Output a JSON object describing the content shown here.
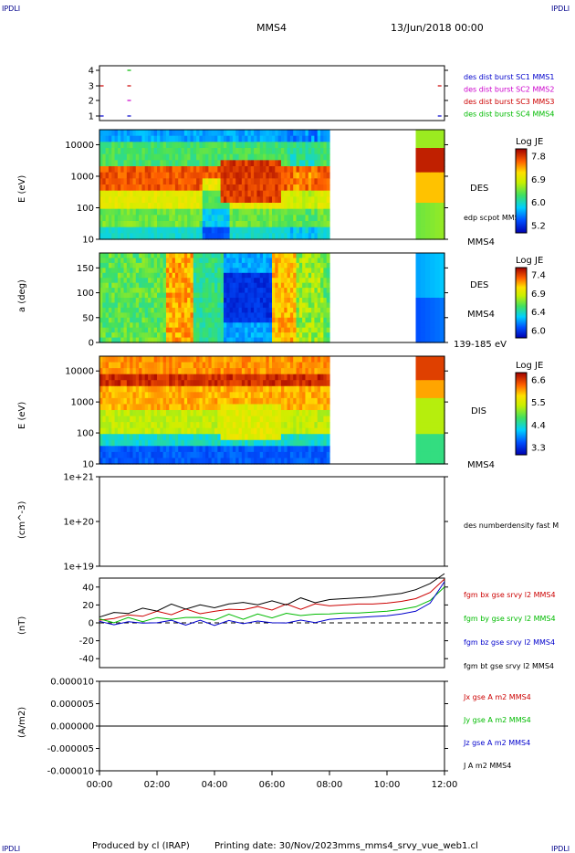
{
  "header": {
    "corner_label": "IPDLI",
    "spacecraft": "MMS4",
    "date": "13/Jun/2018 00:00"
  },
  "footer": {
    "produced_by": "Produced by cl (IRAP)",
    "printing_date": "Printing date: 30/Nov/2023",
    "file": "mms_mms4_srvy_vue_web1.cl"
  },
  "colors": {
    "blue": "#0000cc",
    "magenta": "#cc00cc",
    "red": "#cc0000",
    "green": "#00bb00",
    "black": "#000000"
  },
  "chart_data": [
    {
      "type": "scatter",
      "panel": "burst-availability",
      "yticks": [
        "1",
        "2",
        "3",
        "4"
      ],
      "ylim": [
        0.5,
        4.5
      ],
      "legend": [
        {
          "label": "des dist burst SC1 MMS1",
          "color": "#0000cc"
        },
        {
          "label": "des dist burst SC2 MMS2",
          "color": "#cc00cc"
        },
        {
          "label": "des dist burst SC3 MMS3",
          "color": "#cc0000"
        },
        {
          "label": "des dist burst SC4 MMS4",
          "color": "#00bb00"
        }
      ],
      "marks": [
        {
          "t": 0.05,
          "sc": 1
        },
        {
          "t": 1.0,
          "sc": 1
        },
        {
          "t": 0.05,
          "sc": 3
        },
        {
          "t": 1.0,
          "sc": 3
        },
        {
          "t": 1.0,
          "sc": 2
        },
        {
          "t": 1.0,
          "sc": 4
        },
        {
          "t": 11.8,
          "sc": 3
        },
        {
          "t": 11.8,
          "sc": 1
        }
      ]
    },
    {
      "type": "heatmap",
      "panel": "des-energy",
      "ylabel": "E (eV)",
      "yscale": "log",
      "ylim": [
        10,
        30000
      ],
      "yticks": [
        "10",
        "100",
        "1000",
        "10000"
      ],
      "species": "DES",
      "overlay_label": "edp scpot MMS4",
      "sc_label": "MMS4",
      "colorbar": {
        "title": "Log JE",
        "ticks": [
          "7.8",
          "6.9",
          "6.0",
          "5.2"
        ]
      },
      "data_gap": [
        8.0,
        11.0
      ]
    },
    {
      "type": "heatmap",
      "panel": "des-pitch",
      "ylabel": "a (deg)",
      "ylim": [
        0,
        180
      ],
      "yticks": [
        "0",
        "50",
        "100",
        "150"
      ],
      "species": "DES",
      "sc_label": "MMS4",
      "energy_band": "139-185 eV",
      "colorbar": {
        "title": "Log JE",
        "ticks": [
          "7.4",
          "6.9",
          "6.4",
          "6.0"
        ]
      },
      "data_gap": [
        8.0,
        11.0
      ]
    },
    {
      "type": "heatmap",
      "panel": "dis-energy",
      "ylabel": "E (eV)",
      "yscale": "log",
      "ylim": [
        10,
        30000
      ],
      "yticks": [
        "10",
        "100",
        "1000",
        "10000"
      ],
      "species": "DIS",
      "sc_label": "MMS4",
      "colorbar": {
        "title": "Log JE",
        "ticks": [
          "6.6",
          "5.5",
          "4.4",
          "3.3"
        ]
      },
      "data_gap": [
        8.0,
        11.0
      ]
    },
    {
      "type": "line",
      "panel": "density",
      "ylabel": "(cm^-3)",
      "yscale": "log",
      "yticks": [
        "1e+19",
        "1e+20",
        "1e+21"
      ],
      "legend": [
        {
          "label": "des numberdensity fast M",
          "color": "#000000"
        }
      ],
      "series": []
    },
    {
      "type": "line",
      "panel": "magnetic-field",
      "ylabel": "(nT)",
      "ylim": [
        -50,
        50
      ],
      "yticks": [
        "40",
        "20",
        "0",
        "-20",
        "-40"
      ],
      "legend": [
        {
          "label": "fgm bx gse srvy l2 MMS4",
          "color": "#cc0000"
        },
        {
          "label": "fgm by gse srvy l2 MMS4",
          "color": "#00bb00"
        },
        {
          "label": "fgm bz gse srvy l2 MMS4",
          "color": "#0000cc"
        },
        {
          "label": "fgm bt gse srvy l2 MMS4",
          "color": "#000000"
        }
      ],
      "x": [
        0,
        0.5,
        1,
        1.5,
        2,
        2.5,
        3,
        3.5,
        4,
        4.5,
        5,
        5.5,
        6,
        6.5,
        7,
        7.5,
        8,
        8.5,
        9,
        9.5,
        10,
        10.5,
        11,
        11.5,
        12
      ],
      "series": [
        {
          "color": "#cc0000",
          "values": [
            3,
            6,
            7,
            10,
            10,
            12,
            13,
            12,
            12,
            15,
            16,
            16,
            17,
            18,
            18,
            19,
            19,
            20,
            21,
            21,
            22,
            24,
            27,
            34,
            49
          ]
        },
        {
          "color": "#00bb00",
          "values": [
            2,
            3,
            3,
            4,
            4,
            5,
            6,
            5,
            5,
            7,
            7,
            7,
            8,
            9,
            9,
            10,
            10,
            11,
            11,
            12,
            13,
            15,
            18,
            25,
            40
          ]
        },
        {
          "color": "#0000cc",
          "values": [
            -1,
            0,
            0,
            0,
            1,
            1,
            0,
            0,
            0,
            0,
            1,
            1,
            0,
            1,
            1,
            3,
            4,
            5,
            6,
            7,
            8,
            10,
            13,
            22,
            46
          ]
        },
        {
          "color": "#000000",
          "values": [
            6,
            11,
            12,
            14,
            16,
            18,
            18,
            18,
            18,
            21,
            22,
            22,
            22,
            23,
            25,
            25,
            26,
            27,
            28,
            29,
            31,
            33,
            37,
            44,
            55
          ]
        }
      ],
      "dashed_zero": true
    },
    {
      "type": "line",
      "panel": "current-density",
      "ylabel": "(A/m2)",
      "ylim": [
        -1e-05,
        1e-05
      ],
      "yticks": [
        "0.000010",
        "0.000005",
        "0.000000",
        "-0.000005",
        "-0.000010"
      ],
      "legend": [
        {
          "label": "Jx gse A m2 MMS4",
          "color": "#cc0000"
        },
        {
          "label": "Jy gse A m2 MMS4",
          "color": "#00bb00"
        },
        {
          "label": "Jz gse A m2 MMS4",
          "color": "#0000cc"
        },
        {
          "label": "J A m2 MMS4",
          "color": "#000000"
        }
      ],
      "series": [],
      "x_axis": {
        "ticks": [
          "00:00",
          "02:00",
          "04:00",
          "06:00",
          "08:00",
          "10:00",
          "12:00"
        ],
        "xlim": [
          0,
          12
        ]
      }
    }
  ]
}
